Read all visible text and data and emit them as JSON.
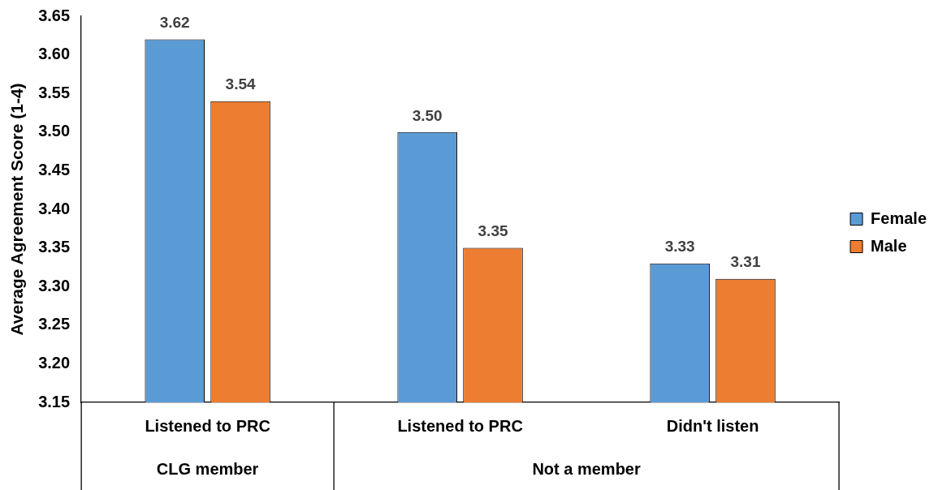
{
  "chart_data": {
    "type": "bar",
    "ylabel": "Average Agreement Score (1-4)",
    "categories": [
      "Listened to PRC",
      "Listened to PRC",
      "Didn't listen"
    ],
    "series": [
      {
        "name": "Female",
        "color": "#5b9bd5",
        "values": [
          3.62,
          3.5,
          3.33
        ],
        "value_labels": [
          "3.62",
          "3.50",
          "3.33"
        ]
      },
      {
        "name": "Male",
        "color": "#ed7d31",
        "values": [
          3.54,
          3.35,
          3.31
        ],
        "value_labels": [
          "3.54",
          "3.35",
          "3.31"
        ]
      }
    ],
    "ylim": [
      3.15,
      3.65
    ],
    "yticks": [
      {
        "value": 3.15,
        "label": "3.15"
      },
      {
        "value": 3.2,
        "label": "3.20"
      },
      {
        "value": 3.25,
        "label": "3.25"
      },
      {
        "value": 3.3,
        "label": "3.30"
      },
      {
        "value": 3.35,
        "label": "3.35"
      },
      {
        "value": 3.4,
        "label": "3.40"
      },
      {
        "value": 3.45,
        "label": "3.45"
      },
      {
        "value": 3.5,
        "label": "3.50"
      },
      {
        "value": 3.55,
        "label": "3.55"
      },
      {
        "value": 3.6,
        "label": "3.60"
      },
      {
        "value": 3.65,
        "label": "3.65"
      }
    ],
    "annotations": [
      "CLG member",
      "Not a member"
    ],
    "grid": false,
    "legend": "right"
  }
}
